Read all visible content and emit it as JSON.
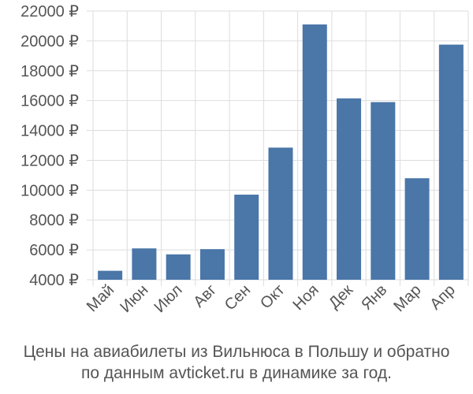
{
  "chart_data": {
    "type": "bar",
    "categories": [
      "Май",
      "Июн",
      "Июл",
      "Авг",
      "Сен",
      "Окт",
      "Ноя",
      "Дек",
      "Янв",
      "Мар",
      "Апр"
    ],
    "values": [
      4600,
      6100,
      5700,
      6050,
      9700,
      12850,
      21100,
      16150,
      15900,
      10800,
      19750
    ],
    "ylim": [
      4000,
      22000
    ],
    "yticks": [
      4000,
      6000,
      8000,
      10000,
      12000,
      14000,
      16000,
      18000,
      20000,
      22000
    ],
    "ytick_labels": [
      "4000 ₽",
      "6000 ₽",
      "8000 ₽",
      "10000 ₽",
      "12000 ₽",
      "14000 ₽",
      "16000 ₽",
      "18000 ₽",
      "20000 ₽",
      "22000 ₽"
    ],
    "grid": "vertical",
    "bar_color": "#4a76a8",
    "grid_color": "#dddddd"
  },
  "caption": {
    "line1": "Цены на авиабилеты из Вильнюса в Польшу и обратно",
    "line2": "по данным avticket.ru в динамике за год."
  }
}
